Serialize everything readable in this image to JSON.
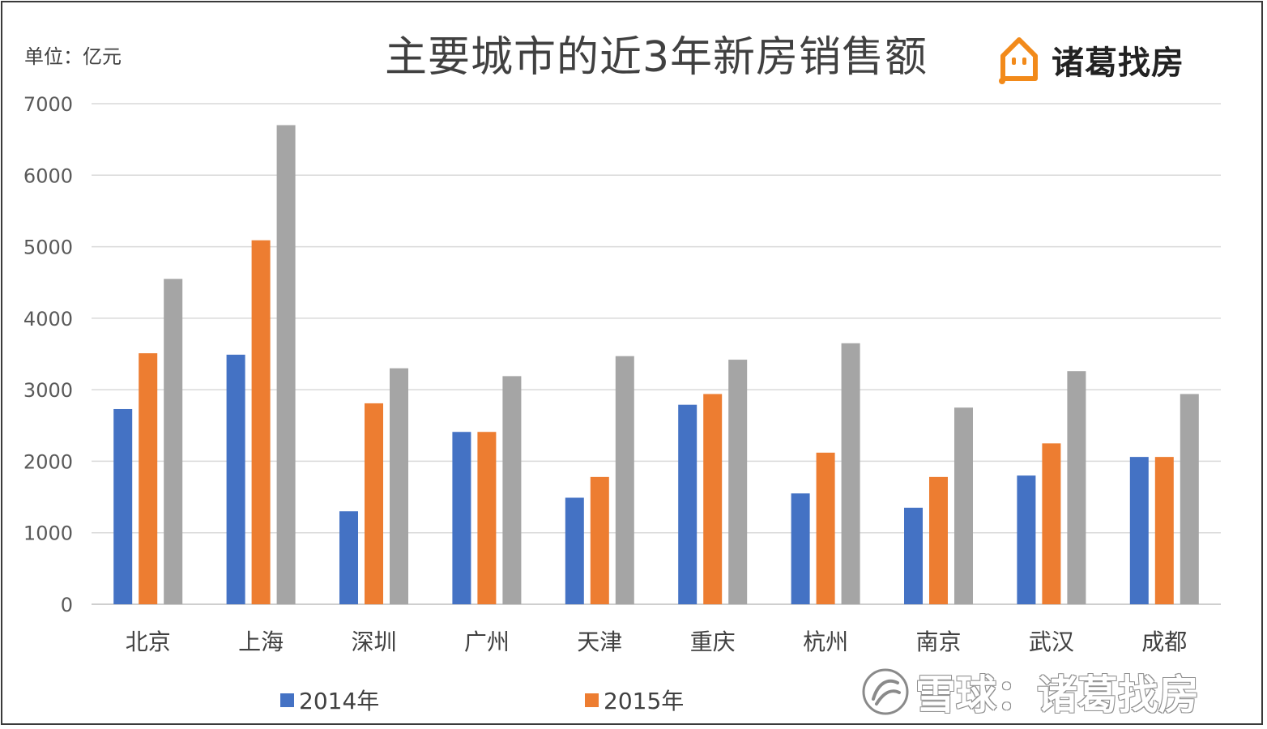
{
  "unit_label": "单位：亿元",
  "logo": {
    "text": "诸葛找房",
    "icon": "house-face-icon",
    "color": "#f28a1a"
  },
  "watermark": {
    "text": "雪球：诸葛找房",
    "icon": "snowball-logo-icon"
  },
  "chart_data": {
    "type": "bar",
    "title": "主要城市的近3年新房销售额",
    "categories": [
      "北京",
      "上海",
      "深圳",
      "广州",
      "天津",
      "重庆",
      "杭州",
      "南京",
      "武汉",
      "成都"
    ],
    "series": [
      {
        "name": "2014年",
        "color": "#4472c4",
        "values": [
          2730,
          3490,
          1300,
          2410,
          1490,
          2790,
          1550,
          1350,
          1800,
          2060
        ]
      },
      {
        "name": "2015年",
        "color": "#ed7d31",
        "values": [
          3510,
          5090,
          2810,
          2410,
          1780,
          2940,
          2120,
          1780,
          2250,
          2060
        ]
      },
      {
        "name": "",
        "color": "#a5a5a5",
        "values": [
          4550,
          6700,
          3300,
          3190,
          3470,
          3420,
          3650,
          2750,
          3260,
          2940
        ]
      }
    ],
    "yticks": [
      "0",
      "1000",
      "2000",
      "3000",
      "4000",
      "5000",
      "6000",
      "7000"
    ],
    "ylim": [
      0,
      7000
    ],
    "grid": true,
    "legend_position": "bottom"
  }
}
